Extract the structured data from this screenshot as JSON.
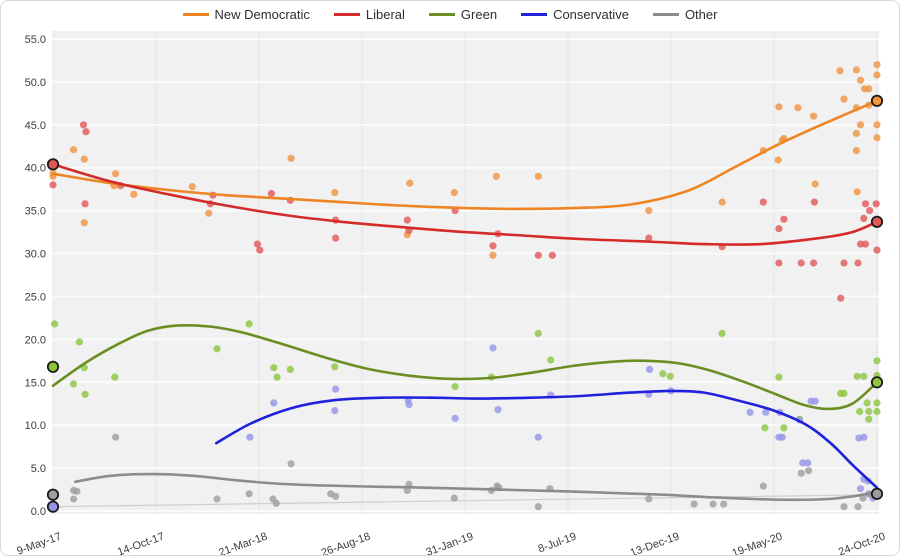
{
  "legend": {
    "items": [
      {
        "label": "New Democratic",
        "color": "#EE8522"
      },
      {
        "label": "Liberal",
        "color": "#D42A2A"
      },
      {
        "label": "Green",
        "color": "#6B8E23"
      },
      {
        "label": "Conservative",
        "color": "#2020DD"
      },
      {
        "label": "Other",
        "color": "#8C8C8C"
      }
    ]
  },
  "chart_data": {
    "type": "scatter",
    "title": "",
    "xlabel": "",
    "ylabel": "",
    "x_axis": {
      "labels": [
        "9-May-17",
        "14-Oct-17",
        "21-Mar-18",
        "26-Aug-18",
        "31-Jan-19",
        "8-Jul-19",
        "13-Dec-19",
        "19-May-20",
        "24-Oct-20"
      ],
      "fracs": [
        0,
        0.125,
        0.25,
        0.375,
        0.5,
        0.625,
        0.75,
        0.875,
        1
      ]
    },
    "y_axis": {
      "min": 0,
      "max": 55,
      "step": 5,
      "labels": [
        "0.0",
        "5.0",
        "10.0",
        "15.0",
        "20.0",
        "25.0",
        "30.0",
        "35.0",
        "40.0",
        "45.0",
        "50.0",
        "55.0"
      ]
    },
    "grid": true,
    "legend_position": "top",
    "series": [
      {
        "name": "New Democratic",
        "line_color": "#EE8522",
        "dot_color": "#F09440",
        "scatter": [
          [
            0,
            39.4
          ],
          [
            0,
            39.0
          ],
          [
            0.025,
            42.1
          ],
          [
            0.038,
            41.0
          ],
          [
            0.038,
            33.6
          ],
          [
            0.074,
            37.9
          ],
          [
            0.076,
            39.3
          ],
          [
            0.098,
            36.9
          ],
          [
            0.169,
            37.8
          ],
          [
            0.189,
            34.7
          ],
          [
            0.289,
            41.1
          ],
          [
            0.342,
            37.1
          ],
          [
            0.43,
            32.2
          ],
          [
            0.433,
            38.2
          ],
          [
            0.487,
            37.1
          ],
          [
            0.534,
            29.8
          ],
          [
            0.538,
            39.0
          ],
          [
            0.589,
            39.0
          ],
          [
            0.723,
            35.0
          ],
          [
            0.812,
            36.0
          ],
          [
            0.862,
            42.0
          ],
          [
            0.88,
            40.9
          ],
          [
            0.881,
            47.1
          ],
          [
            0.885,
            43.2
          ],
          [
            0.887,
            43.4
          ],
          [
            0.904,
            47.0
          ],
          [
            0.923,
            46.0
          ],
          [
            0.925,
            38.1
          ],
          [
            0.955,
            51.3
          ],
          [
            0.96,
            48.0
          ],
          [
            0.975,
            51.4
          ],
          [
            0.975,
            47.0
          ],
          [
            0.975,
            44.0
          ],
          [
            0.975,
            42.0
          ],
          [
            0.976,
            37.2
          ],
          [
            0.98,
            50.2
          ],
          [
            0.98,
            45.0
          ],
          [
            0.985,
            49.2
          ],
          [
            0.99,
            49.2
          ],
          [
            0.99,
            47.3
          ],
          [
            1,
            52.0
          ],
          [
            1,
            50.8
          ],
          [
            1,
            45.0
          ],
          [
            1,
            43.5
          ]
        ],
        "trend": [
          [
            0,
            39.3
          ],
          [
            0.07,
            38.2
          ],
          [
            0.14,
            37.4
          ],
          [
            0.21,
            36.8
          ],
          [
            0.28,
            36.4
          ],
          [
            0.35,
            36.0
          ],
          [
            0.42,
            35.6
          ],
          [
            0.5,
            35.3
          ],
          [
            0.56,
            35.2
          ],
          [
            0.63,
            35.3
          ],
          [
            0.7,
            35.7
          ],
          [
            0.77,
            37.3
          ],
          [
            0.83,
            40.2
          ],
          [
            0.88,
            42.7
          ],
          [
            0.93,
            44.9
          ],
          [
            1,
            47.8
          ]
        ]
      },
      {
        "name": "Liberal",
        "line_color": "#D42A2A",
        "dot_color": "#E25757",
        "scatter": [
          [
            0,
            38.0
          ],
          [
            0.037,
            45.0
          ],
          [
            0.04,
            44.2
          ],
          [
            0.039,
            35.8
          ],
          [
            0.082,
            37.9
          ],
          [
            0.191,
            35.8
          ],
          [
            0.194,
            36.8
          ],
          [
            0.248,
            31.1
          ],
          [
            0.251,
            30.4
          ],
          [
            0.265,
            37.0
          ],
          [
            0.288,
            36.2
          ],
          [
            0.343,
            33.9
          ],
          [
            0.343,
            31.8
          ],
          [
            0.43,
            33.9
          ],
          [
            0.432,
            32.7
          ],
          [
            0.488,
            35.0
          ],
          [
            0.534,
            30.9
          ],
          [
            0.54,
            32.3
          ],
          [
            0.589,
            29.8
          ],
          [
            0.606,
            29.8
          ],
          [
            0.723,
            31.8
          ],
          [
            0.812,
            30.8
          ],
          [
            0.862,
            36.0
          ],
          [
            0.881,
            32.9
          ],
          [
            0.881,
            28.9
          ],
          [
            0.887,
            34.0
          ],
          [
            0.908,
            28.9
          ],
          [
            0.924,
            36.0
          ],
          [
            0.923,
            28.9
          ],
          [
            0.956,
            24.8
          ],
          [
            0.96,
            28.9
          ],
          [
            0.977,
            28.9
          ],
          [
            0.98,
            31.1
          ],
          [
            0.986,
            31.1
          ],
          [
            0.984,
            34.1
          ],
          [
            0.986,
            35.8
          ],
          [
            0.991,
            35.0
          ],
          [
            0.999,
            35.8
          ],
          [
            1,
            30.4
          ]
        ],
        "trend": [
          [
            0,
            40.4
          ],
          [
            0.07,
            38.4
          ],
          [
            0.14,
            36.9
          ],
          [
            0.21,
            35.6
          ],
          [
            0.28,
            34.5
          ],
          [
            0.35,
            33.7
          ],
          [
            0.42,
            33.1
          ],
          [
            0.5,
            32.5
          ],
          [
            0.57,
            32.1
          ],
          [
            0.64,
            31.7
          ],
          [
            0.72,
            31.4
          ],
          [
            0.79,
            31.1
          ],
          [
            0.86,
            31.1
          ],
          [
            0.93,
            31.8
          ],
          [
            0.97,
            32.5
          ],
          [
            1,
            33.7
          ]
        ]
      },
      {
        "name": "Green",
        "line_color": "#6B8E23",
        "dot_color": "#8CC63E",
        "scatter": [
          [
            0.002,
            21.8
          ],
          [
            0.025,
            14.8
          ],
          [
            0.032,
            19.7
          ],
          [
            0.038,
            16.7
          ],
          [
            0.039,
            13.6
          ],
          [
            0.075,
            15.6
          ],
          [
            0.199,
            18.9
          ],
          [
            0.238,
            21.8
          ],
          [
            0.268,
            16.7
          ],
          [
            0.272,
            15.6
          ],
          [
            0.288,
            16.5
          ],
          [
            0.342,
            16.8
          ],
          [
            0.488,
            14.5
          ],
          [
            0.532,
            15.6
          ],
          [
            0.589,
            20.7
          ],
          [
            0.604,
            17.6
          ],
          [
            0.74,
            16.0
          ],
          [
            0.749,
            15.7
          ],
          [
            0.812,
            20.7
          ],
          [
            0.864,
            9.7
          ],
          [
            0.881,
            15.6
          ],
          [
            0.887,
            9.7
          ],
          [
            0.906,
            10.7
          ],
          [
            0.956,
            13.7
          ],
          [
            0.96,
            13.7
          ],
          [
            0.976,
            15.7
          ],
          [
            0.979,
            11.6
          ],
          [
            0.984,
            15.7
          ],
          [
            0.988,
            12.6
          ],
          [
            0.99,
            11.6
          ],
          [
            0.99,
            10.7
          ],
          [
            1,
            17.5
          ],
          [
            1,
            15.8
          ],
          [
            1,
            12.6
          ],
          [
            1,
            11.6
          ]
        ],
        "trend": [
          [
            0,
            14.6
          ],
          [
            0.04,
            17.3
          ],
          [
            0.08,
            19.5
          ],
          [
            0.115,
            21.0
          ],
          [
            0.15,
            21.6
          ],
          [
            0.19,
            21.5
          ],
          [
            0.23,
            20.8
          ],
          [
            0.28,
            19.4
          ],
          [
            0.33,
            17.9
          ],
          [
            0.38,
            16.6
          ],
          [
            0.43,
            15.8
          ],
          [
            0.48,
            15.4
          ],
          [
            0.53,
            15.5
          ],
          [
            0.58,
            16.1
          ],
          [
            0.63,
            16.9
          ],
          [
            0.68,
            17.4
          ],
          [
            0.72,
            17.5
          ],
          [
            0.76,
            17.2
          ],
          [
            0.8,
            16.3
          ],
          [
            0.84,
            15.0
          ],
          [
            0.88,
            13.5
          ],
          [
            0.91,
            12.4
          ],
          [
            0.94,
            11.9
          ],
          [
            0.97,
            12.5
          ],
          [
            1,
            15.0
          ]
        ]
      },
      {
        "name": "Conservative",
        "line_color": "#2020DD",
        "dot_color": "#9494E8",
        "scatter": [
          [
            0.239,
            8.6
          ],
          [
            0.268,
            12.6
          ],
          [
            0.342,
            11.7
          ],
          [
            0.343,
            14.2
          ],
          [
            0.431,
            12.9
          ],
          [
            0.432,
            12.4
          ],
          [
            0.488,
            10.8
          ],
          [
            0.534,
            19.0
          ],
          [
            0.54,
            11.8
          ],
          [
            0.589,
            8.6
          ],
          [
            0.604,
            13.5
          ],
          [
            0.723,
            13.6
          ],
          [
            0.724,
            16.5
          ],
          [
            0.75,
            14.0
          ],
          [
            0.846,
            11.5
          ],
          [
            0.865,
            11.5
          ],
          [
            0.882,
            11.5
          ],
          [
            0.881,
            8.6
          ],
          [
            0.885,
            8.6
          ],
          [
            0.906,
            10.6
          ],
          [
            0.91,
            5.6
          ],
          [
            0.916,
            5.6
          ],
          [
            0.92,
            12.8
          ],
          [
            0.925,
            12.8
          ],
          [
            0.978,
            8.5
          ],
          [
            0.984,
            8.6
          ],
          [
            0.984,
            3.7
          ],
          [
            0.989,
            3.5
          ],
          [
            0.98,
            2.6
          ],
          [
            0.99,
            2.0
          ],
          [
            0.995,
            1.5
          ],
          [
            1,
            2.3
          ]
        ],
        "trend": [
          [
            0.198,
            7.9
          ],
          [
            0.24,
            10.2
          ],
          [
            0.29,
            12.0
          ],
          [
            0.34,
            12.9
          ],
          [
            0.4,
            13.2
          ],
          [
            0.46,
            13.2
          ],
          [
            0.52,
            13.1
          ],
          [
            0.58,
            13.2
          ],
          [
            0.64,
            13.4
          ],
          [
            0.7,
            13.8
          ],
          [
            0.75,
            14.0
          ],
          [
            0.79,
            13.8
          ],
          [
            0.83,
            12.9
          ],
          [
            0.875,
            11.7
          ],
          [
            0.915,
            10.0
          ],
          [
            0.945,
            7.8
          ],
          [
            0.97,
            5.4
          ],
          [
            1,
            2.7
          ]
        ]
      },
      {
        "name": "Other",
        "line_color": "#8C8C8C",
        "dot_color": "#9E9E9E",
        "scatter": [
          [
            0.025,
            2.4
          ],
          [
            0.025,
            1.4
          ],
          [
            0.029,
            2.3
          ],
          [
            0.076,
            8.6
          ],
          [
            0.199,
            1.4
          ],
          [
            0.238,
            2.0
          ],
          [
            0.267,
            1.4
          ],
          [
            0.271,
            0.9
          ],
          [
            0.289,
            5.5
          ],
          [
            0.337,
            2.0
          ],
          [
            0.343,
            1.7
          ],
          [
            0.43,
            2.4
          ],
          [
            0.432,
            3.1
          ],
          [
            0.487,
            1.5
          ],
          [
            0.532,
            2.4
          ],
          [
            0.539,
            2.9
          ],
          [
            0.541,
            2.7
          ],
          [
            0.589,
            0.5
          ],
          [
            0.603,
            2.6
          ],
          [
            0.723,
            1.4
          ],
          [
            0.778,
            0.8
          ],
          [
            0.801,
            0.8
          ],
          [
            0.814,
            0.8
          ],
          [
            0.862,
            2.9
          ],
          [
            0.908,
            4.4
          ],
          [
            0.917,
            4.7
          ],
          [
            0.96,
            0.5
          ],
          [
            0.977,
            0.5
          ],
          [
            0.983,
            1.5
          ],
          [
            0.993,
            1.9
          ]
        ],
        "trend": [
          [
            0.027,
            3.4
          ],
          [
            0.07,
            4.1
          ],
          [
            0.12,
            4.3
          ],
          [
            0.17,
            4.1
          ],
          [
            0.22,
            3.6
          ],
          [
            0.27,
            3.2
          ],
          [
            0.32,
            3.0
          ],
          [
            0.38,
            2.85
          ],
          [
            0.44,
            2.75
          ],
          [
            0.5,
            2.6
          ],
          [
            0.56,
            2.45
          ],
          [
            0.62,
            2.3
          ],
          [
            0.68,
            2.1
          ],
          [
            0.74,
            1.9
          ],
          [
            0.8,
            1.6
          ],
          [
            0.85,
            1.4
          ],
          [
            0.9,
            1.3
          ],
          [
            0.94,
            1.4
          ],
          [
            0.97,
            1.7
          ],
          [
            1,
            2.2
          ]
        ]
      }
    ],
    "election_markers": [
      {
        "series": "Liberal",
        "frac": 0,
        "value": 40.4
      },
      {
        "series": "Green",
        "frac": 0,
        "value": 16.8
      },
      {
        "series": "Other",
        "frac": 0,
        "value": 1.9
      },
      {
        "series": "Conservative",
        "frac": 0,
        "value": 0.5
      },
      {
        "series": "New Democratic",
        "frac": 1,
        "value": 47.8
      },
      {
        "series": "Liberal",
        "frac": 1,
        "value": 33.7
      },
      {
        "series": "Green",
        "frac": 1,
        "value": 15.0
      },
      {
        "series": "Other",
        "frac": 1,
        "value": 2.0
      }
    ],
    "baseline_line": {
      "series": "Conservative",
      "from": [
        0,
        0.5
      ],
      "to": [
        1,
        1.9
      ],
      "color": "#cfcfcf"
    }
  }
}
